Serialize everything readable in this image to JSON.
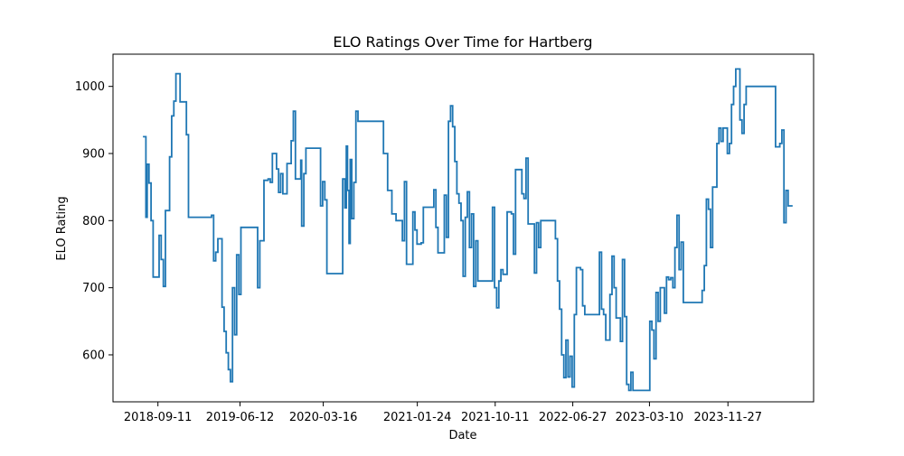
{
  "chart_data": {
    "type": "line",
    "title": "ELO Ratings Over Time for Hartberg",
    "xlabel": "Date",
    "ylabel": "ELO Rating",
    "x_ticks": [
      "2018-09-11",
      "2019-06-12",
      "2020-03-16",
      "2021-01-24",
      "2021-10-11",
      "2022-06-27",
      "2023-03-10",
      "2023-11-27"
    ],
    "y_ticks": [
      "600",
      "700",
      "800",
      "900",
      "1000"
    ],
    "xlim": [
      "2018-04-14",
      "2024-09-08"
    ],
    "ylim": [
      530,
      1048
    ],
    "grid": false,
    "legend": "none",
    "line_color": "#1f77b4",
    "series": [
      {
        "step": true,
        "points": [
          [
            "2018-07-23",
            925
          ],
          [
            "2018-08-02",
            805
          ],
          [
            "2018-08-06",
            884
          ],
          [
            "2018-08-12",
            856
          ],
          [
            "2018-08-19",
            800
          ],
          [
            "2018-08-26",
            716
          ],
          [
            "2018-09-15",
            778
          ],
          [
            "2018-09-22",
            742
          ],
          [
            "2018-09-29",
            702
          ],
          [
            "2018-10-06",
            815
          ],
          [
            "2018-10-20",
            895
          ],
          [
            "2018-10-27",
            956
          ],
          [
            "2018-11-03",
            978
          ],
          [
            "2018-11-10",
            1019
          ],
          [
            "2018-11-24",
            977
          ],
          [
            "2018-12-15",
            928
          ],
          [
            "2018-12-22",
            805
          ],
          [
            "2019-03-02",
            805
          ],
          [
            "2019-03-09",
            808
          ],
          [
            "2019-03-16",
            740
          ],
          [
            "2019-03-23",
            753
          ],
          [
            "2019-03-30",
            773
          ],
          [
            "2019-04-13",
            671
          ],
          [
            "2019-04-20",
            635
          ],
          [
            "2019-04-27",
            603
          ],
          [
            "2019-05-04",
            578
          ],
          [
            "2019-05-11",
            560
          ],
          [
            "2019-05-18",
            700
          ],
          [
            "2019-05-25",
            630
          ],
          [
            "2019-06-01",
            749
          ],
          [
            "2019-06-08",
            690
          ],
          [
            "2019-06-15",
            790
          ],
          [
            "2019-08-10",
            700
          ],
          [
            "2019-08-17",
            770
          ],
          [
            "2019-08-31",
            860
          ],
          [
            "2019-09-14",
            862
          ],
          [
            "2019-09-21",
            857
          ],
          [
            "2019-09-28",
            900
          ],
          [
            "2019-10-12",
            877
          ],
          [
            "2019-10-19",
            842
          ],
          [
            "2019-10-26",
            870
          ],
          [
            "2019-11-02",
            840
          ],
          [
            "2019-11-16",
            885
          ],
          [
            "2019-11-30",
            919
          ],
          [
            "2019-12-07",
            963
          ],
          [
            "2019-12-14",
            862
          ],
          [
            "2020-01-01",
            890
          ],
          [
            "2020-01-04",
            792
          ],
          [
            "2020-01-11",
            870
          ],
          [
            "2020-01-18",
            908
          ],
          [
            "2020-03-01",
            908
          ],
          [
            "2020-03-07",
            822
          ],
          [
            "2020-03-14",
            858
          ],
          [
            "2020-03-21",
            831
          ],
          [
            "2020-03-28",
            721
          ],
          [
            "2020-05-20",
            862
          ],
          [
            "2020-05-27",
            819
          ],
          [
            "2020-06-01",
            911
          ],
          [
            "2020-06-05",
            845
          ],
          [
            "2020-06-10",
            766
          ],
          [
            "2020-06-14",
            891
          ],
          [
            "2020-06-19",
            803
          ],
          [
            "2020-06-26",
            857
          ],
          [
            "2020-07-03",
            963
          ],
          [
            "2020-07-10",
            948
          ],
          [
            "2020-09-19",
            948
          ],
          [
            "2020-10-03",
            900
          ],
          [
            "2020-10-17",
            845
          ],
          [
            "2020-10-31",
            810
          ],
          [
            "2020-11-14",
            800
          ],
          [
            "2020-12-05",
            770
          ],
          [
            "2020-12-12",
            858
          ],
          [
            "2020-12-19",
            735
          ],
          [
            "2021-01-09",
            813
          ],
          [
            "2021-01-16",
            786
          ],
          [
            "2021-01-23",
            765
          ],
          [
            "2021-02-06",
            767
          ],
          [
            "2021-02-13",
            820
          ],
          [
            "2021-03-20",
            846
          ],
          [
            "2021-03-27",
            790
          ],
          [
            "2021-04-03",
            752
          ],
          [
            "2021-04-24",
            838
          ],
          [
            "2021-05-01",
            775
          ],
          [
            "2021-05-08",
            948
          ],
          [
            "2021-05-15",
            971
          ],
          [
            "2021-05-22",
            940
          ],
          [
            "2021-05-29",
            888
          ],
          [
            "2021-06-05",
            840
          ],
          [
            "2021-06-12",
            826
          ],
          [
            "2021-06-19",
            800
          ],
          [
            "2021-06-26",
            717
          ],
          [
            "2021-07-03",
            805
          ],
          [
            "2021-07-10",
            843
          ],
          [
            "2021-07-17",
            760
          ],
          [
            "2021-07-24",
            810
          ],
          [
            "2021-07-31",
            702
          ],
          [
            "2021-08-07",
            770
          ],
          [
            "2021-08-14",
            710
          ],
          [
            "2021-09-25",
            710
          ],
          [
            "2021-10-02",
            820
          ],
          [
            "2021-10-09",
            700
          ],
          [
            "2021-10-16",
            670
          ],
          [
            "2021-10-23",
            710
          ],
          [
            "2021-10-30",
            727
          ],
          [
            "2021-11-06",
            720
          ],
          [
            "2021-11-20",
            813
          ],
          [
            "2021-12-04",
            810
          ],
          [
            "2021-12-11",
            750
          ],
          [
            "2021-12-18",
            876
          ],
          [
            "2022-01-01",
            876
          ],
          [
            "2022-01-08",
            840
          ],
          [
            "2022-01-15",
            833
          ],
          [
            "2022-01-22",
            893
          ],
          [
            "2022-01-29",
            795
          ],
          [
            "2022-02-12",
            795
          ],
          [
            "2022-02-19",
            722
          ],
          [
            "2022-02-26",
            797
          ],
          [
            "2022-03-05",
            760
          ],
          [
            "2022-03-12",
            800
          ],
          [
            "2022-04-23",
            800
          ],
          [
            "2022-04-30",
            773
          ],
          [
            "2022-05-07",
            710
          ],
          [
            "2022-05-14",
            668
          ],
          [
            "2022-05-21",
            600
          ],
          [
            "2022-05-28",
            566
          ],
          [
            "2022-06-04",
            622
          ],
          [
            "2022-06-11",
            567
          ],
          [
            "2022-06-18",
            598
          ],
          [
            "2022-06-25",
            552
          ],
          [
            "2022-07-02",
            660
          ],
          [
            "2022-07-09",
            730
          ],
          [
            "2022-07-23",
            727
          ],
          [
            "2022-07-30",
            673
          ],
          [
            "2022-08-06",
            660
          ],
          [
            "2022-09-17",
            660
          ],
          [
            "2022-09-24",
            753
          ],
          [
            "2022-10-01",
            668
          ],
          [
            "2022-10-08",
            660
          ],
          [
            "2022-10-15",
            622
          ],
          [
            "2022-10-29",
            690
          ],
          [
            "2022-11-05",
            747
          ],
          [
            "2022-11-12",
            700
          ],
          [
            "2022-11-19",
            655
          ],
          [
            "2022-12-03",
            620
          ],
          [
            "2022-12-10",
            742
          ],
          [
            "2022-12-17",
            657
          ],
          [
            "2022-12-24",
            556
          ],
          [
            "2022-12-31",
            547
          ],
          [
            "2023-01-07",
            574
          ],
          [
            "2023-01-14",
            547
          ],
          [
            "2023-03-04",
            547
          ],
          [
            "2023-03-11",
            650
          ],
          [
            "2023-03-18",
            637
          ],
          [
            "2023-03-25",
            594
          ],
          [
            "2023-04-01",
            693
          ],
          [
            "2023-04-08",
            650
          ],
          [
            "2023-04-15",
            700
          ],
          [
            "2023-04-29",
            662
          ],
          [
            "2023-05-06",
            716
          ],
          [
            "2023-05-13",
            712
          ],
          [
            "2023-05-20",
            715
          ],
          [
            "2023-05-27",
            700
          ],
          [
            "2023-06-03",
            760
          ],
          [
            "2023-06-10",
            808
          ],
          [
            "2023-06-17",
            727
          ],
          [
            "2023-06-24",
            768
          ],
          [
            "2023-07-01",
            678
          ],
          [
            "2023-08-26",
            678
          ],
          [
            "2023-09-02",
            696
          ],
          [
            "2023-09-09",
            733
          ],
          [
            "2023-09-16",
            832
          ],
          [
            "2023-09-23",
            817
          ],
          [
            "2023-09-30",
            760
          ],
          [
            "2023-10-07",
            850
          ],
          [
            "2023-10-21",
            915
          ],
          [
            "2023-10-28",
            938
          ],
          [
            "2023-11-04",
            918
          ],
          [
            "2023-11-11",
            938
          ],
          [
            "2023-11-25",
            900
          ],
          [
            "2023-12-02",
            915
          ],
          [
            "2023-12-09",
            973
          ],
          [
            "2023-12-16",
            1000
          ],
          [
            "2023-12-23",
            1026
          ],
          [
            "2024-01-06",
            950
          ],
          [
            "2024-01-13",
            930
          ],
          [
            "2024-01-20",
            973
          ],
          [
            "2024-01-27",
            1000
          ],
          [
            "2024-04-27",
            1000
          ],
          [
            "2024-05-04",
            910
          ],
          [
            "2024-05-18",
            915
          ],
          [
            "2024-05-25",
            935
          ],
          [
            "2024-06-01",
            797
          ],
          [
            "2024-06-08",
            845
          ],
          [
            "2024-06-15",
            822
          ],
          [
            "2024-06-30",
            822
          ]
        ]
      }
    ]
  }
}
